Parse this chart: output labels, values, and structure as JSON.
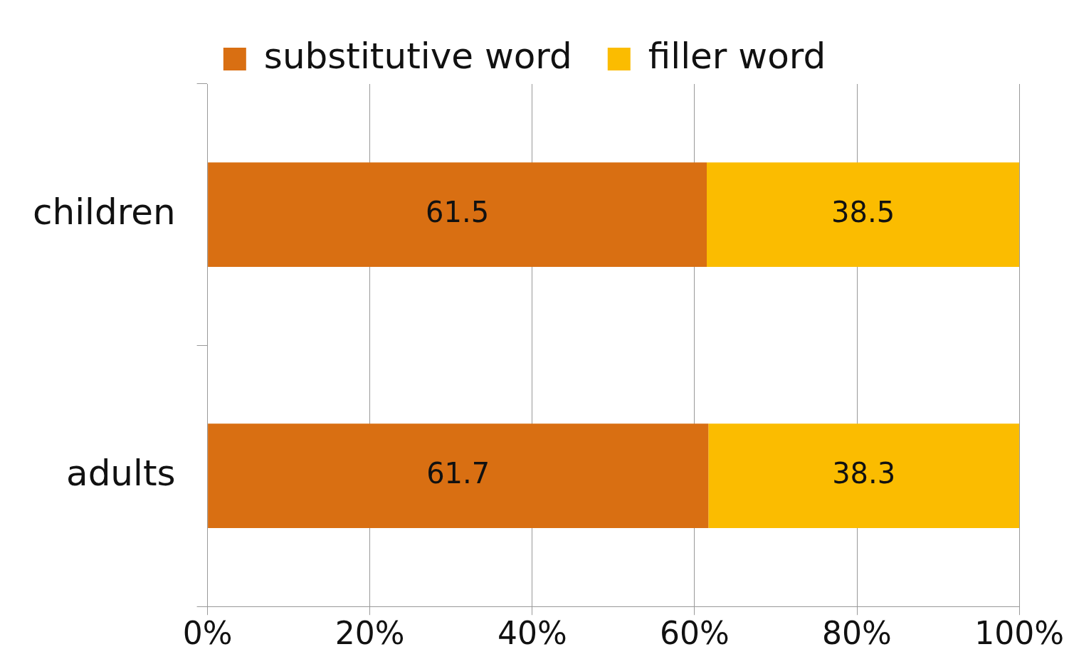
{
  "chart_data": {
    "type": "bar",
    "orientation": "horizontal",
    "stacked": true,
    "categories": [
      "children",
      "adults"
    ],
    "series": [
      {
        "name": "substitutive word",
        "color": "#d96f12",
        "values": [
          61.5,
          61.7
        ]
      },
      {
        "name": "filler word",
        "color": "#fbbc00",
        "values": [
          38.5,
          38.3
        ]
      }
    ],
    "xlim": [
      0,
      100
    ],
    "xticks": [
      {
        "value": 0,
        "label": "0%"
      },
      {
        "value": 20,
        "label": "20%"
      },
      {
        "value": 40,
        "label": "40%"
      },
      {
        "value": 60,
        "label": "60%"
      },
      {
        "value": 80,
        "label": "80%"
      },
      {
        "value": 100,
        "label": "100%"
      }
    ],
    "grid": "x",
    "legend": "top",
    "data_labels": true
  }
}
